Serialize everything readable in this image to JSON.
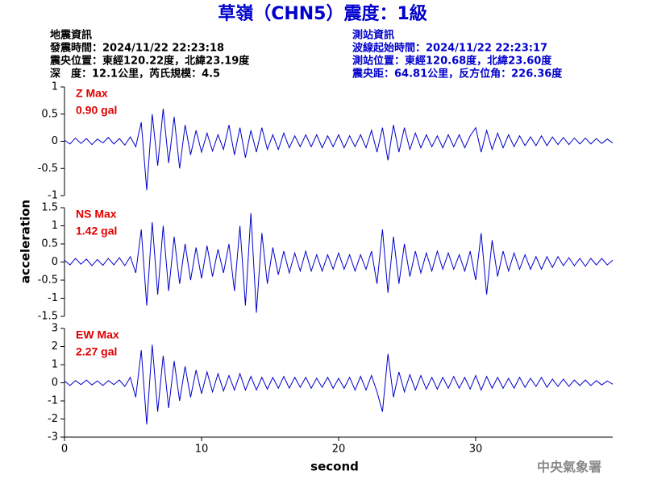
{
  "header": {
    "title": "草嶺（CHN5）震度：1級",
    "left": [
      "地震資訊",
      "發震時間：2024/11/22 22:23:18",
      "震央位置：東經120.22度，北緯23.19度",
      "深　度：12.1公里，芮氏規模：4.5"
    ],
    "right": [
      "測站資訊",
      "波線起始時間：2024/11/22 22:23:17",
      "測站位置：東經120.68度，北緯23.60度",
      "震央距：64.81公里，反方位角：226.36度"
    ]
  },
  "footer": "中央氣象署",
  "chart_data": [
    {
      "type": "line",
      "annotations": [
        "Z Max",
        "0.90 gal"
      ],
      "x": [
        0,
        0.4,
        0.8,
        1.2,
        1.6,
        2,
        2.4,
        2.8,
        3.2,
        3.6,
        4,
        4.4,
        4.8,
        5.2,
        5.6,
        6,
        6.4,
        6.8,
        7.2,
        7.6,
        8,
        8.4,
        8.8,
        9.2,
        9.6,
        10,
        10.4,
        10.8,
        11.2,
        11.6,
        12,
        12.4,
        12.8,
        13.2,
        13.6,
        14,
        14.4,
        14.8,
        15.2,
        15.6,
        16,
        16.4,
        16.8,
        17.2,
        17.6,
        18,
        18.4,
        18.8,
        19.2,
        19.6,
        20,
        20.4,
        20.8,
        21.2,
        21.6,
        22,
        22.4,
        22.8,
        23.2,
        23.6,
        24,
        24.4,
        24.8,
        25.2,
        25.6,
        26,
        26.4,
        26.8,
        27.2,
        27.6,
        28,
        28.4,
        28.8,
        29.2,
        29.6,
        30,
        30.4,
        30.8,
        31.2,
        31.6,
        32,
        32.4,
        32.8,
        33.2,
        33.6,
        34,
        34.4,
        34.8,
        35.2,
        35.6,
        36,
        36.4,
        36.8,
        37.2,
        37.6,
        38,
        38.4,
        38.8,
        39.2,
        39.6,
        40
      ],
      "series": [
        {
          "color": "#0000cc",
          "values": [
            0.02,
            -0.05,
            0.06,
            -0.04,
            0.05,
            -0.06,
            0.04,
            -0.03,
            0.07,
            -0.05,
            0.05,
            -0.07,
            0.08,
            -0.1,
            0.35,
            -0.9,
            0.5,
            -0.45,
            0.6,
            -0.4,
            0.45,
            -0.5,
            0.3,
            -0.25,
            0.2,
            -0.2,
            0.15,
            -0.18,
            0.12,
            -0.15,
            0.3,
            -0.25,
            0.25,
            -0.3,
            0.2,
            -0.2,
            0.25,
            -0.15,
            0.12,
            -0.15,
            0.15,
            -0.12,
            0.1,
            -0.1,
            0.12,
            -0.1,
            0.12,
            -0.12,
            0.1,
            -0.1,
            0.12,
            -0.12,
            0.1,
            -0.1,
            0.12,
            -0.12,
            0.2,
            -0.2,
            0.25,
            -0.35,
            0.3,
            -0.2,
            0.25,
            -0.15,
            0.15,
            -0.12,
            0.12,
            -0.1,
            0.1,
            -0.12,
            0.12,
            -0.1,
            0.12,
            -0.12,
            0.1,
            0.25,
            -0.2,
            0.2,
            -0.15,
            0.15,
            -0.12,
            0.12,
            -0.1,
            0.1,
            -0.08,
            0.08,
            -0.08,
            0.1,
            -0.08,
            0.08,
            -0.06,
            0.07,
            -0.06,
            0.06,
            -0.05,
            0.06,
            -0.05,
            0.05,
            -0.04,
            0.04,
            -0.03
          ]
        }
      ],
      "xlim": [
        0,
        40
      ],
      "ylim": [
        -1,
        1
      ],
      "yticks": [
        -1,
        -0.5,
        0,
        0.5,
        1
      ]
    },
    {
      "type": "line",
      "annotations": [
        "NS Max",
        "1.42 gal"
      ],
      "ylabel": "acceleration",
      "x": [
        0,
        0.4,
        0.8,
        1.2,
        1.6,
        2,
        2.4,
        2.8,
        3.2,
        3.6,
        4,
        4.4,
        4.8,
        5.2,
        5.6,
        6,
        6.4,
        6.8,
        7.2,
        7.6,
        8,
        8.4,
        8.8,
        9.2,
        9.6,
        10,
        10.4,
        10.8,
        11.2,
        11.6,
        12,
        12.4,
        12.8,
        13.2,
        13.6,
        14,
        14.4,
        14.8,
        15.2,
        15.6,
        16,
        16.4,
        16.8,
        17.2,
        17.6,
        18,
        18.4,
        18.8,
        19.2,
        19.6,
        20,
        20.4,
        20.8,
        21.2,
        21.6,
        22,
        22.4,
        22.8,
        23.2,
        23.6,
        24,
        24.4,
        24.8,
        25.2,
        25.6,
        26,
        26.4,
        26.8,
        27.2,
        27.6,
        28,
        28.4,
        28.8,
        29.2,
        29.6,
        30,
        30.4,
        30.8,
        31.2,
        31.6,
        32,
        32.4,
        32.8,
        33.2,
        33.6,
        34,
        34.4,
        34.8,
        35.2,
        35.6,
        36,
        36.4,
        36.8,
        37.2,
        37.6,
        38,
        38.4,
        38.8,
        39.2,
        39.6,
        40
      ],
      "series": [
        {
          "color": "#0000cc",
          "values": [
            0.05,
            -0.08,
            0.1,
            -0.06,
            0.08,
            -0.1,
            0.07,
            -0.09,
            0.1,
            -0.08,
            0.12,
            -0.1,
            0.15,
            -0.3,
            0.9,
            -1.2,
            1.1,
            -0.9,
            1.0,
            -0.8,
            0.7,
            -0.6,
            0.5,
            -0.5,
            0.4,
            -0.45,
            0.45,
            -0.4,
            0.35,
            -0.3,
            0.5,
            -0.8,
            1.0,
            -1.2,
            1.35,
            -1.4,
            0.8,
            -0.6,
            0.4,
            -0.35,
            0.3,
            -0.3,
            0.25,
            -0.25,
            0.3,
            -0.25,
            0.2,
            -0.25,
            0.2,
            -0.2,
            0.25,
            -0.2,
            0.2,
            -0.25,
            0.2,
            -0.2,
            0.3,
            -0.6,
            0.9,
            -0.85,
            0.7,
            -0.6,
            0.5,
            -0.4,
            0.3,
            -0.3,
            0.25,
            -0.25,
            0.3,
            -0.2,
            0.25,
            -0.2,
            0.2,
            -0.25,
            0.3,
            -0.5,
            0.8,
            -0.9,
            0.6,
            -0.4,
            0.3,
            -0.25,
            0.25,
            -0.2,
            0.2,
            -0.2,
            0.15,
            -0.2,
            0.15,
            -0.15,
            0.15,
            -0.1,
            0.12,
            -0.1,
            0.1,
            -0.12,
            0.1,
            -0.08,
            0.1,
            -0.08,
            0.05
          ]
        }
      ],
      "xlim": [
        0,
        40
      ],
      "ylim": [
        -1.5,
        1.5
      ],
      "yticks": [
        -1.5,
        -1,
        -0.5,
        0,
        0.5,
        1,
        1.5
      ]
    },
    {
      "type": "line",
      "annotations": [
        "EW Max",
        "2.27 gal"
      ],
      "xlabel": "second",
      "x": [
        0,
        0.4,
        0.8,
        1.2,
        1.6,
        2,
        2.4,
        2.8,
        3.2,
        3.6,
        4,
        4.4,
        4.8,
        5.2,
        5.6,
        6,
        6.4,
        6.8,
        7.2,
        7.6,
        8,
        8.4,
        8.8,
        9.2,
        9.6,
        10,
        10.4,
        10.8,
        11.2,
        11.6,
        12,
        12.4,
        12.8,
        13.2,
        13.6,
        14,
        14.4,
        14.8,
        15.2,
        15.6,
        16,
        16.4,
        16.8,
        17.2,
        17.6,
        18,
        18.4,
        18.8,
        19.2,
        19.6,
        20,
        20.4,
        20.8,
        21.2,
        21.6,
        22,
        22.4,
        22.8,
        23.2,
        23.6,
        24,
        24.4,
        24.8,
        25.2,
        25.6,
        26,
        26.4,
        26.8,
        27.2,
        27.6,
        28,
        28.4,
        28.8,
        29.2,
        29.6,
        30,
        30.4,
        30.8,
        31.2,
        31.6,
        32,
        32.4,
        32.8,
        33.2,
        33.6,
        34,
        34.4,
        34.8,
        35.2,
        35.6,
        36,
        36.4,
        36.8,
        37.2,
        37.6,
        38,
        38.4,
        38.8,
        39.2,
        39.6,
        40
      ],
      "series": [
        {
          "color": "#0000cc",
          "values": [
            0.1,
            -0.15,
            0.12,
            -0.1,
            0.15,
            -0.12,
            0.1,
            -0.15,
            0.12,
            -0.1,
            0.15,
            -0.2,
            0.3,
            -0.8,
            1.8,
            -2.3,
            2.1,
            -1.6,
            1.5,
            -1.4,
            1.2,
            -1.0,
            0.9,
            -0.8,
            0.7,
            -0.6,
            0.6,
            -0.5,
            0.5,
            -0.45,
            0.4,
            -0.4,
            0.5,
            -0.4,
            0.35,
            -0.4,
            0.3,
            -0.35,
            0.3,
            -0.3,
            0.35,
            -0.3,
            0.3,
            -0.25,
            0.3,
            -0.3,
            0.25,
            -0.25,
            0.3,
            -0.3,
            0.25,
            -0.3,
            0.3,
            -0.4,
            0.35,
            -0.4,
            0.4,
            -0.5,
            -1.6,
            1.6,
            -0.8,
            0.6,
            -0.5,
            0.45,
            -0.4,
            0.4,
            -0.35,
            0.3,
            -0.35,
            0.3,
            -0.3,
            0.35,
            -0.3,
            0.3,
            -0.35,
            0.4,
            -0.4,
            0.35,
            -0.3,
            0.3,
            -0.3,
            0.25,
            -0.3,
            0.3,
            -0.25,
            0.25,
            -0.2,
            0.3,
            -0.25,
            0.2,
            -0.2,
            0.2,
            -0.2,
            0.15,
            -0.15,
            0.15,
            -0.15,
            0.12,
            -0.12,
            0.1,
            -0.08
          ]
        }
      ],
      "xlim": [
        0,
        40
      ],
      "ylim": [
        -3,
        3
      ],
      "yticks": [
        -3,
        -2,
        -1,
        0,
        1,
        2,
        3
      ],
      "xticks": [
        0,
        10,
        20,
        30
      ]
    }
  ]
}
